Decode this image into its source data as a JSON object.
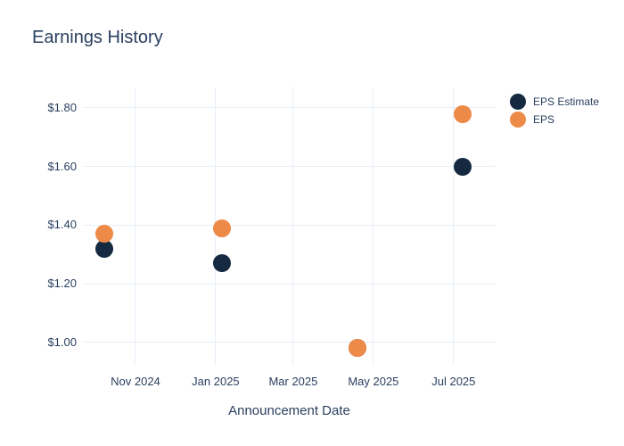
{
  "title": "Earnings History",
  "colors": {
    "background": "#ffffff",
    "text": "#2a3f5f",
    "gridline": "#e8eef7",
    "eps_estimate": "#152a40",
    "eps": "#ee8a48"
  },
  "legend": {
    "items": [
      {
        "label": "EPS Estimate",
        "color": "#152a40"
      },
      {
        "label": "EPS",
        "color": "#ee8a48"
      }
    ]
  },
  "chart_data": {
    "type": "scatter",
    "title": "Earnings History",
    "xlabel": "Announcement Date",
    "ylabel": "",
    "grid": true,
    "legend_position": "right",
    "marker_size": 20,
    "xlim": [
      "2024-09-22",
      "2025-08-02"
    ],
    "ylim": [
      0.92,
      1.87
    ],
    "x_ticks": [
      {
        "date": "2024-11-01",
        "label": "Nov 2024"
      },
      {
        "date": "2025-01-01",
        "label": "Jan 2025"
      },
      {
        "date": "2025-03-01",
        "label": "Mar 2025"
      },
      {
        "date": "2025-05-01",
        "label": "May 2025"
      },
      {
        "date": "2025-07-01",
        "label": "Jul 2025"
      }
    ],
    "y_ticks": [
      {
        "value": 1.0,
        "label": "$1.00"
      },
      {
        "value": 1.2,
        "label": "$1.20"
      },
      {
        "value": 1.4,
        "label": "$1.40"
      },
      {
        "value": 1.6,
        "label": "$1.60"
      },
      {
        "value": 1.8,
        "label": "$1.80"
      }
    ],
    "series": [
      {
        "name": "EPS Estimate",
        "color": "#152a40",
        "points": [
          {
            "x": "2024-10-08",
            "y": 1.32
          },
          {
            "x": "2025-01-06",
            "y": 1.27
          },
          {
            "x": "2025-04-19",
            "y": 0.98
          },
          {
            "x": "2025-07-08",
            "y": 1.6
          }
        ]
      },
      {
        "name": "EPS",
        "color": "#ee8a48",
        "points": [
          {
            "x": "2024-10-08",
            "y": 1.37
          },
          {
            "x": "2025-01-06",
            "y": 1.39
          },
          {
            "x": "2025-04-19",
            "y": 0.98
          },
          {
            "x": "2025-07-08",
            "y": 1.78
          }
        ]
      }
    ]
  }
}
